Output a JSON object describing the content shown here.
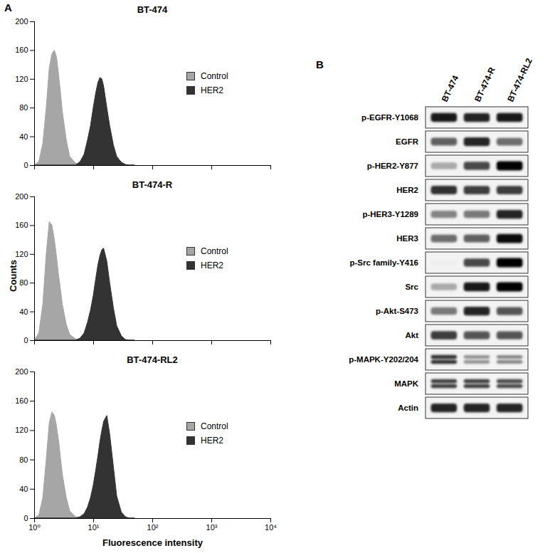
{
  "chart_data": [
    {
      "type": "histogram",
      "title": "BT-474",
      "x": [
        1,
        1.2,
        1.4,
        1.6,
        1.8,
        2,
        2.2,
        2.4,
        2.6,
        2.8,
        3,
        3.5,
        4,
        5,
        6,
        7,
        8,
        9,
        10,
        11,
        12,
        13,
        14,
        15,
        17,
        19,
        22,
        25,
        30,
        35,
        40,
        50
      ],
      "series": [
        {
          "name": "Control",
          "color": "#a6a6a6",
          "values": [
            0,
            5,
            30,
            80,
            135,
            155,
            160,
            150,
            125,
            100,
            75,
            35,
            12,
            3,
            0,
            0,
            0,
            0,
            0,
            0,
            0,
            0,
            0,
            0,
            0,
            0,
            0,
            0,
            0,
            0,
            0,
            0
          ]
        },
        {
          "name": "HER2",
          "color": "#333333",
          "values": [
            0,
            0,
            0,
            0,
            0,
            0,
            0,
            0,
            0,
            0,
            0,
            0,
            0,
            0,
            5,
            15,
            35,
            55,
            80,
            100,
            115,
            122,
            120,
            110,
            80,
            55,
            28,
            12,
            4,
            1,
            0,
            0
          ]
        }
      ],
      "xlim": [
        1,
        10000
      ],
      "xticks": [
        {
          "value": 1,
          "label": "10⁰"
        },
        {
          "value": 10,
          "label": "10¹"
        },
        {
          "value": 100,
          "label": "10²"
        },
        {
          "value": 1000,
          "label": "10³"
        },
        {
          "value": 10000,
          "label": "10⁴"
        }
      ],
      "ylim": [
        0,
        200
      ],
      "yticks": [
        0,
        40,
        80,
        120,
        160,
        200
      ],
      "log": "x",
      "legend": "right",
      "tick_labels": "y"
    },
    {
      "type": "histogram",
      "title": "BT-474-R",
      "x": [
        1,
        1.2,
        1.4,
        1.6,
        1.8,
        2,
        2.2,
        2.4,
        2.6,
        2.8,
        3,
        3.5,
        4,
        5,
        6,
        7,
        8,
        9,
        10,
        11,
        12,
        13,
        14,
        15,
        17,
        19,
        22,
        25,
        30,
        35,
        40,
        50
      ],
      "series": [
        {
          "name": "Control",
          "color": "#a6a6a6",
          "values": [
            0,
            10,
            50,
            120,
            165,
            160,
            140,
            115,
            90,
            70,
            50,
            22,
            8,
            2,
            0,
            0,
            0,
            0,
            0,
            0,
            0,
            0,
            0,
            0,
            0,
            0,
            0,
            0,
            0,
            0,
            0,
            0
          ]
        },
        {
          "name": "HER2",
          "color": "#333333",
          "values": [
            0,
            0,
            0,
            0,
            0,
            0,
            0,
            0,
            0,
            0,
            0,
            0,
            0,
            0,
            3,
            10,
            25,
            42,
            62,
            85,
            105,
            118,
            126,
            128,
            110,
            80,
            45,
            20,
            6,
            1,
            0,
            0
          ]
        }
      ],
      "xlim": [
        1,
        10000
      ],
      "xticks": [
        {
          "value": 1,
          "label": "10⁰"
        },
        {
          "value": 10,
          "label": "10¹"
        },
        {
          "value": 100,
          "label": "10²"
        },
        {
          "value": 1000,
          "label": "10³"
        },
        {
          "value": 10000,
          "label": "10⁴"
        }
      ],
      "ylim": [
        0,
        200
      ],
      "yticks": [
        0,
        40,
        80,
        120,
        160,
        200
      ],
      "log": "x",
      "legend": "right",
      "tick_labels": "y"
    },
    {
      "type": "histogram",
      "title": "BT-474-RL2",
      "x": [
        1,
        1.2,
        1.4,
        1.6,
        1.8,
        2,
        2.2,
        2.4,
        2.6,
        2.8,
        3,
        3.5,
        4,
        5,
        6,
        7,
        8,
        9,
        10,
        11,
        12,
        13,
        14,
        15,
        17,
        19,
        22,
        25,
        30,
        35,
        40,
        50
      ],
      "series": [
        {
          "name": "Control",
          "color": "#a6a6a6",
          "values": [
            0,
            4,
            28,
            80,
            130,
            145,
            140,
            125,
            105,
            82,
            60,
            28,
            10,
            2,
            0,
            0,
            0,
            0,
            0,
            0,
            0,
            0,
            0,
            0,
            0,
            0,
            0,
            0,
            0,
            0,
            0,
            0
          ]
        },
        {
          "name": "HER2",
          "color": "#333333",
          "values": [
            0,
            0,
            0,
            0,
            0,
            0,
            0,
            0,
            0,
            0,
            0,
            0,
            0,
            0,
            2,
            6,
            15,
            28,
            45,
            65,
            85,
            105,
            120,
            132,
            140,
            115,
            70,
            30,
            8,
            2,
            0,
            0
          ]
        }
      ],
      "xlim": [
        1,
        10000
      ],
      "xticks": [
        {
          "value": 1,
          "label": "10⁰"
        },
        {
          "value": 10,
          "label": "10¹"
        },
        {
          "value": 100,
          "label": "10²"
        },
        {
          "value": 1000,
          "label": "10³"
        },
        {
          "value": 10000,
          "label": "10⁴"
        }
      ],
      "ylim": [
        0,
        200
      ],
      "yticks": [
        0,
        40,
        80,
        120,
        160,
        200
      ],
      "xlabel": "Fluorescence intensity",
      "log": "x",
      "legend": "right"
    }
  ],
  "figure": {
    "panel_labels": [
      "A",
      "B"
    ],
    "ylabel": "Counts"
  },
  "blot": {
    "lanes": [
      "BT-474",
      "BT-474-R",
      "BT-474-RL2"
    ],
    "rows": [
      {
        "label": "p-EGFR-Y1068",
        "intensity": [
          0.9,
          0.85,
          0.9
        ]
      },
      {
        "label": "EGFR",
        "intensity": [
          0.6,
          0.85,
          0.55
        ]
      },
      {
        "label": "p-HER2-Y877",
        "intensity": [
          0.3,
          0.7,
          1.0
        ]
      },
      {
        "label": "HER2",
        "intensity": [
          0.8,
          0.75,
          0.75
        ]
      },
      {
        "label": "p-HER3-Y1289",
        "intensity": [
          0.45,
          0.5,
          0.85
        ]
      },
      {
        "label": "HER3",
        "intensity": [
          0.55,
          0.6,
          0.95
        ]
      },
      {
        "label": "p-Src family-Y416",
        "intensity": [
          0.02,
          0.7,
          1.0
        ]
      },
      {
        "label": "Src",
        "intensity": [
          0.3,
          0.9,
          1.0
        ]
      },
      {
        "label": "p-Akt-S473",
        "intensity": [
          0.5,
          0.85,
          0.65
        ]
      },
      {
        "label": "Akt",
        "intensity": [
          0.75,
          0.65,
          0.65
        ]
      },
      {
        "label": "p-MAPK-Y202/204",
        "intensity": [
          0.8,
          0.4,
          0.45
        ],
        "bands": 2
      },
      {
        "label": "MAPK",
        "intensity": [
          0.75,
          0.75,
          0.7
        ],
        "bands": 2
      },
      {
        "label": "Actin",
        "intensity": [
          0.85,
          0.85,
          0.85
        ]
      }
    ]
  }
}
